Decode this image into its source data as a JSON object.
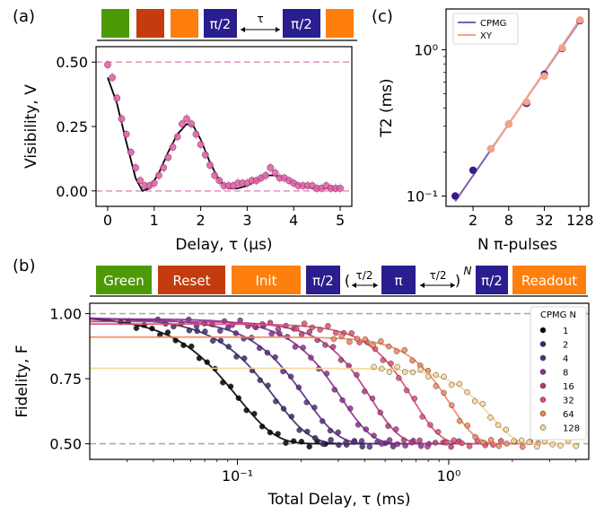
{
  "panel_labels": {
    "a": "(a)",
    "b": "(b)",
    "c": "(c)"
  },
  "sequence_a": {
    "boxes": [
      {
        "label": "",
        "color": "#4e9a06"
      },
      {
        "label": "",
        "color": "#c43c0e"
      },
      {
        "label": "",
        "color": "#ff7f0e"
      },
      {
        "label": "π/2",
        "color": "#2a1d8e"
      },
      {
        "label": "π/2",
        "color": "#2a1d8e"
      },
      {
        "label": "",
        "color": "#ff7f0e"
      }
    ],
    "delay_label": "τ"
  },
  "sequence_b": {
    "boxes": [
      {
        "label": "Green",
        "color": "#4e9a06"
      },
      {
        "label": "Reset",
        "color": "#c43c0e"
      },
      {
        "label": "Init",
        "color": "#ff7f0e"
      },
      {
        "label": "π/2",
        "color": "#2a1d8e"
      },
      {
        "label": "π",
        "color": "#2a1d8e"
      },
      {
        "label": "π/2",
        "color": "#2a1d8e"
      },
      {
        "label": "Readout",
        "color": "#ff7f0e"
      }
    ],
    "delay_label": "τ/2",
    "open_paren": "(",
    "close_paren": ")",
    "exponent": "N"
  },
  "colors": {
    "ramsey_points": "#e06aa8",
    "ramsey_fit": "#000000",
    "ref_line_pink": "#e39ac8",
    "ref_line_gray": "#aaaaaa",
    "cpmg_line": "#8060b0",
    "xy_line": "#f2a48a",
    "cpmg_palette": [
      "#000000",
      "#3b2a6b",
      "#5a2a86",
      "#8a2f93",
      "#b6397f",
      "#dc4f72",
      "#f2875e",
      "#fcd596"
    ]
  },
  "chart_data": [
    {
      "id": "a",
      "type": "scatter",
      "xlabel": "Delay, τ (μs)",
      "ylabel": "Visibility, V",
      "xlim": [
        -0.25,
        5.25
      ],
      "ylim": [
        -0.06,
        0.56
      ],
      "xticks": [
        0,
        1,
        2,
        3,
        4,
        5
      ],
      "xtick_labels": [
        "0",
        "1",
        "2",
        "3",
        "4",
        "5"
      ],
      "yticks": [
        0.0,
        0.25,
        0.5
      ],
      "ytick_labels": [
        "0.00",
        "0.25",
        "0.50"
      ],
      "reference_lines": [
        0.0,
        0.5
      ],
      "x": [
        0.0,
        0.1,
        0.2,
        0.3,
        0.4,
        0.5,
        0.6,
        0.7,
        0.8,
        0.9,
        1.0,
        1.1,
        1.2,
        1.3,
        1.4,
        1.5,
        1.6,
        1.7,
        1.8,
        1.9,
        2.0,
        2.1,
        2.2,
        2.3,
        2.4,
        2.5,
        2.6,
        2.7,
        2.8,
        2.9,
        3.0,
        3.1,
        3.2,
        3.3,
        3.4,
        3.5,
        3.6,
        3.7,
        3.8,
        3.9,
        4.0,
        4.1,
        4.2,
        4.3,
        4.4,
        4.5,
        4.6,
        4.7,
        4.8,
        4.9,
        5.0
      ],
      "y": [
        0.49,
        0.44,
        0.36,
        0.28,
        0.22,
        0.15,
        0.09,
        0.04,
        0.02,
        0.02,
        0.03,
        0.06,
        0.09,
        0.13,
        0.17,
        0.21,
        0.26,
        0.28,
        0.26,
        0.22,
        0.18,
        0.14,
        0.1,
        0.06,
        0.04,
        0.02,
        0.02,
        0.02,
        0.03,
        0.03,
        0.03,
        0.04,
        0.04,
        0.05,
        0.06,
        0.09,
        0.07,
        0.05,
        0.05,
        0.04,
        0.03,
        0.02,
        0.02,
        0.02,
        0.02,
        0.01,
        0.01,
        0.02,
        0.01,
        0.01,
        0.01
      ],
      "fit": {
        "x": [
          0.0,
          0.2,
          0.4,
          0.6,
          0.75,
          0.9,
          1.1,
          1.3,
          1.5,
          1.7,
          1.85,
          2.0,
          2.2,
          2.4,
          2.6,
          2.8,
          3.0,
          3.2,
          3.4,
          3.6,
          3.8,
          4.0,
          4.2,
          4.4,
          4.6,
          4.8,
          5.0
        ],
        "y": [
          0.44,
          0.34,
          0.19,
          0.05,
          0.0,
          0.01,
          0.07,
          0.15,
          0.22,
          0.26,
          0.25,
          0.2,
          0.11,
          0.04,
          0.01,
          0.01,
          0.02,
          0.04,
          0.06,
          0.06,
          0.05,
          0.03,
          0.02,
          0.01,
          0.01,
          0.01,
          0.01
        ]
      }
    },
    {
      "id": "c",
      "type": "line",
      "xscale": "log",
      "yscale": "log",
      "xlabel": "N π-pulses",
      "ylabel": "T2 (ms)",
      "xlim": [
        0.7,
        180
      ],
      "ylim": [
        0.085,
        1.9
      ],
      "xticks": [
        2,
        8,
        32,
        128
      ],
      "xtick_labels": [
        "2",
        "8",
        "32",
        "128"
      ],
      "yticks": [
        0.1,
        1.0
      ],
      "ytick_labels": [
        "10⁻¹",
        "10⁰"
      ],
      "legend": "top-left",
      "series": [
        {
          "name": "CPMG",
          "x": [
            1,
            2,
            4,
            8,
            16,
            32,
            64,
            128
          ],
          "y": [
            0.1,
            0.15,
            0.21,
            0.31,
            0.43,
            0.68,
            1.02,
            1.58
          ],
          "fit_x": [
            1,
            128
          ],
          "fit_y": [
            0.092,
            1.58
          ]
        },
        {
          "name": "XY",
          "x": [
            4,
            8,
            16,
            32,
            64,
            128
          ],
          "y": [
            0.21,
            0.31,
            0.44,
            0.66,
            1.03,
            1.6
          ],
          "fit_x": [
            4,
            128
          ],
          "fit_y": [
            0.205,
            1.62
          ]
        }
      ]
    },
    {
      "id": "b",
      "type": "scatter",
      "xscale": "log",
      "xlabel": "Total Delay, τ (ms)",
      "ylabel": "Fidelity, F",
      "xlim": [
        0.02,
        4.6
      ],
      "ylim": [
        0.44,
        1.04
      ],
      "xticks": [
        0.1,
        1.0
      ],
      "xtick_labels": [
        "10⁻¹",
        "10⁰"
      ],
      "yticks": [
        0.5,
        0.75,
        1.0
      ],
      "ytick_labels": [
        "0.50",
        "0.75",
        "1.00"
      ],
      "reference_lines": [
        0.5,
        1.0
      ],
      "legend_title": "CPMG N",
      "legend": "right",
      "series": [
        {
          "name": "1",
          "A": 0.99,
          "T2": 0.1,
          "n": 2.4,
          "xmin": 0.02,
          "xmax": 0.4
        },
        {
          "name": "2",
          "A": 0.985,
          "T2": 0.15,
          "n": 2.6,
          "xmin": 0.02,
          "xmax": 0.55
        },
        {
          "name": "4",
          "A": 0.98,
          "T2": 0.21,
          "n": 2.8,
          "xmin": 0.02,
          "xmax": 0.8
        },
        {
          "name": "8",
          "A": 0.98,
          "T2": 0.31,
          "n": 3.0,
          "xmin": 0.02,
          "xmax": 1.1
        },
        {
          "name": "16",
          "A": 0.97,
          "T2": 0.43,
          "n": 3.2,
          "xmin": 0.02,
          "xmax": 1.5
        },
        {
          "name": "32",
          "A": 0.96,
          "T2": 0.68,
          "n": 3.4,
          "xmin": 0.02,
          "xmax": 2.2
        },
        {
          "name": "64",
          "A": 0.91,
          "T2": 1.02,
          "n": 3.6,
          "xmin": 0.02,
          "xmax": 3.0
        },
        {
          "name": "128",
          "A": 0.79,
          "T2": 1.58,
          "n": 3.8,
          "xmin": 0.02,
          "xmax": 4.0
        }
      ]
    }
  ]
}
